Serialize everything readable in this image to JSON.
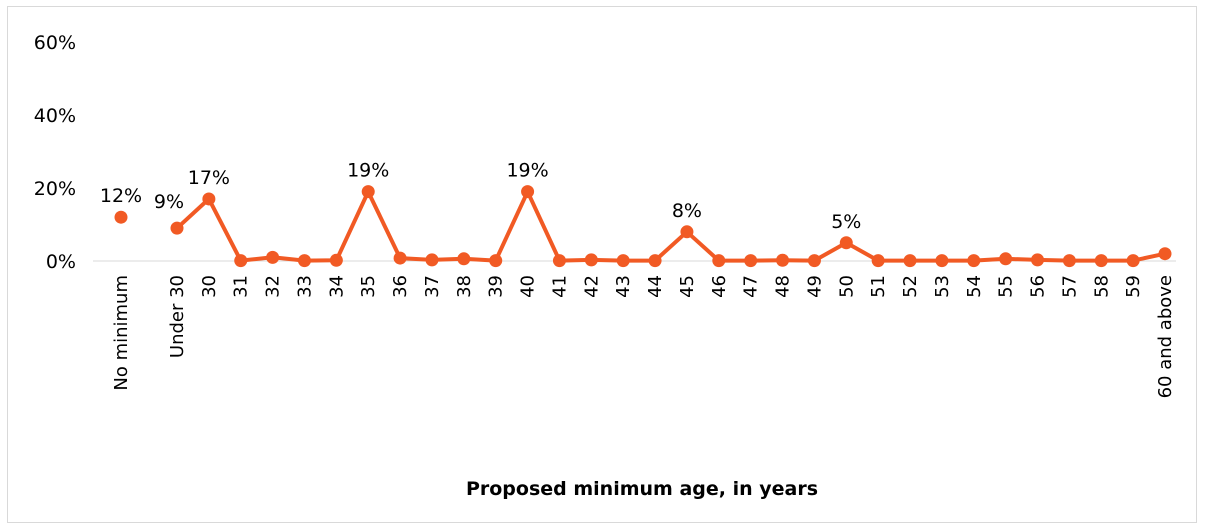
{
  "chart_data": {
    "type": "line",
    "title": "",
    "xlabel": "Proposed minimum age, in years",
    "ylabel": "",
    "ylim": [
      0,
      60
    ],
    "yticks": [
      "0%",
      "20%",
      "40%",
      "60%"
    ],
    "grid": false,
    "legend": "none",
    "color": "#f15a24",
    "categories": [
      "No minimum",
      "Under 30",
      "30",
      "31",
      "32",
      "33",
      "34",
      "35",
      "36",
      "37",
      "38",
      "39",
      "40",
      "41",
      "42",
      "43",
      "44",
      "45",
      "46",
      "47",
      "48",
      "49",
      "50",
      "51",
      "52",
      "53",
      "54",
      "55",
      "56",
      "57",
      "58",
      "59",
      "60 and above"
    ],
    "values": [
      12,
      9,
      17,
      0.1,
      1,
      0.1,
      0.2,
      19,
      0.8,
      0.3,
      0.6,
      0.1,
      19,
      0.1,
      0.3,
      0.1,
      0.1,
      8,
      0.1,
      0.1,
      0.2,
      0.1,
      5,
      0.1,
      0.1,
      0.1,
      0.1,
      0.6,
      0.3,
      0.1,
      0.1,
      0.1,
      2
    ],
    "data_labels": [
      "12%",
      "9%",
      "17%",
      "",
      "",
      "",
      "",
      "19%",
      "",
      "",
      "",
      "",
      "19%",
      "",
      "",
      "",
      "",
      "8%",
      "",
      "",
      "",
      "",
      "5%",
      "",
      "",
      "",
      "",
      "",
      "",
      "",
      "",
      "",
      ""
    ]
  }
}
